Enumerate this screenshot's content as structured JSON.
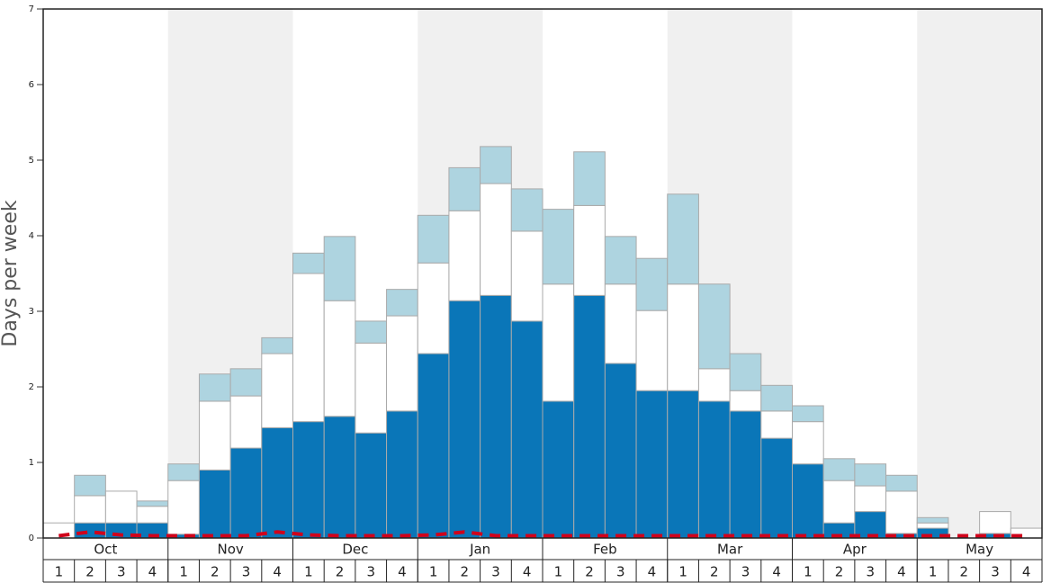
{
  "chart_data": {
    "type": "stacked_bar",
    "y_label": "Days per week",
    "groups": [
      "Oct",
      "Nov",
      "Dec",
      "Jan",
      "Feb",
      "Mar",
      "Apr",
      "May"
    ],
    "categories": [
      "1",
      "2",
      "3",
      "4",
      "1",
      "2",
      "3",
      "4",
      "1",
      "2",
      "3",
      "4",
      "1",
      "2",
      "3",
      "4",
      "1",
      "2",
      "3",
      "4",
      "1",
      "2",
      "3",
      "4",
      "1",
      "2",
      "3",
      "4",
      "1",
      "2",
      "3",
      "4"
    ],
    "series": [
      {
        "color": "#0a76b8",
        "values": [
          0,
          0.2,
          0.2,
          0.2,
          0.05,
          0.9,
          1.19,
          1.46,
          1.54,
          1.61,
          1.39,
          1.68,
          2.44,
          3.14,
          3.21,
          2.87,
          1.81,
          3.21,
          2.31,
          1.95,
          1.95,
          1.81,
          1.68,
          1.32,
          0.98,
          0.2,
          0.35,
          0.06,
          0.13,
          0,
          0.06,
          0
        ]
      },
      {
        "color": "#ffffff",
        "values": [
          0.2,
          0.36,
          0.42,
          0.22,
          0.71,
          0.91,
          0.69,
          0.98,
          1.96,
          1.53,
          1.19,
          1.26,
          1.2,
          1.19,
          1.48,
          1.19,
          1.55,
          1.19,
          1.05,
          1.06,
          1.41,
          0.43,
          0.27,
          0.36,
          0.56,
          0.56,
          0.34,
          0.56,
          0.07,
          0,
          0.29,
          0.13
        ]
      },
      {
        "color": "#aed4e0",
        "values": [
          0,
          0.27,
          0,
          0.07,
          0.22,
          0.36,
          0.36,
          0.21,
          0.27,
          0.85,
          0.29,
          0.35,
          0.63,
          0.57,
          0.49,
          0.56,
          0.99,
          0.71,
          0.63,
          0.69,
          1.19,
          1.12,
          0.49,
          0.34,
          0.21,
          0.29,
          0.29,
          0.21,
          0.07,
          0,
          0,
          0
        ]
      }
    ],
    "line": {
      "color": "#d0021b",
      "values": [
        0.03,
        0.08,
        0.04,
        0.03,
        0.03,
        0.03,
        0.03,
        0.08,
        0.04,
        0.03,
        0.03,
        0.03,
        0.04,
        0.08,
        0.03,
        0.03,
        0.03,
        0.03,
        0.03,
        0.03,
        0.03,
        0.03,
        0.03,
        0.03,
        0.03,
        0.03,
        0.03,
        0.03,
        0.03,
        0.03,
        0.03,
        0.03
      ]
    },
    "ylim": [
      0,
      7
    ],
    "yticks": [
      0,
      1,
      2,
      3,
      4,
      5,
      6,
      7
    ]
  }
}
